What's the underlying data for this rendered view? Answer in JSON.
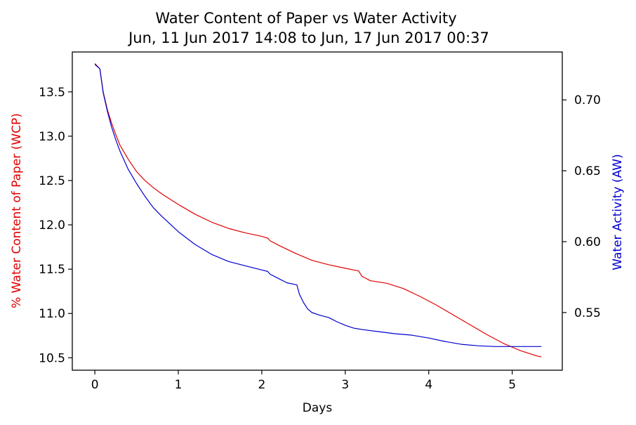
{
  "chart_data": {
    "type": "line",
    "title": "Water Content of Paper vs Water Activity",
    "subtitle": "Jun, 11 Jun 2017 14:08 to Jun, 17 Jun 2017 00:37",
    "xlabel": "Days",
    "ylabel_left": "% Water Content of Paper (WCP)",
    "ylabel_right": "Water Activity (AW)",
    "xlim": [
      -0.27,
      5.6
    ],
    "ylim_left": [
      10.36,
      13.95
    ],
    "ylim_right": [
      0.5093,
      0.7338
    ],
    "x_ticks": [
      0,
      1,
      2,
      3,
      4,
      5
    ],
    "y_left_ticks": [
      10.5,
      11.0,
      11.5,
      12.0,
      12.5,
      13.0,
      13.5
    ],
    "y_right_ticks": [
      0.55,
      0.6,
      0.65,
      0.7
    ],
    "grid": false,
    "colors": {
      "wcp": "#e00000",
      "aw": "#0000cc"
    },
    "series": [
      {
        "name": "% Water Content of Paper (WCP)",
        "axis": "left",
        "color": "#e00000",
        "x": [
          0,
          0.06,
          0.1,
          0.15,
          0.2,
          0.25,
          0.3,
          0.4,
          0.5,
          0.6,
          0.7,
          0.8,
          1.0,
          1.2,
          1.4,
          1.6,
          1.8,
          2.0,
          2.07,
          2.1,
          2.2,
          2.4,
          2.6,
          2.8,
          3.0,
          3.16,
          3.2,
          3.3,
          3.5,
          3.7,
          3.9,
          4.1,
          4.3,
          4.5,
          4.7,
          4.9,
          5.1,
          5.3,
          5.35
        ],
        "y": [
          13.82,
          13.76,
          13.5,
          13.3,
          13.15,
          13.02,
          12.9,
          12.74,
          12.6,
          12.5,
          12.42,
          12.35,
          12.23,
          12.12,
          12.03,
          11.96,
          11.91,
          11.87,
          11.85,
          11.82,
          11.77,
          11.68,
          11.6,
          11.55,
          11.51,
          11.48,
          11.42,
          11.37,
          11.34,
          11.28,
          11.19,
          11.09,
          10.98,
          10.87,
          10.76,
          10.66,
          10.58,
          10.52,
          10.51
        ]
      },
      {
        "name": "Water Activity (AW)",
        "axis": "right",
        "color": "#0000cc",
        "x": [
          0,
          0.06,
          0.1,
          0.15,
          0.2,
          0.25,
          0.3,
          0.4,
          0.5,
          0.6,
          0.7,
          0.8,
          1.0,
          1.2,
          1.4,
          1.6,
          1.8,
          2.0,
          2.07,
          2.1,
          2.2,
          2.3,
          2.42,
          2.45,
          2.5,
          2.55,
          2.6,
          2.7,
          2.8,
          2.9,
          3.0,
          3.1,
          3.2,
          3.4,
          3.6,
          3.8,
          4.0,
          4.2,
          4.4,
          4.6,
          4.8,
          5.0,
          5.2,
          5.35
        ],
        "y": [
          0.725,
          0.722,
          0.705,
          0.692,
          0.681,
          0.672,
          0.664,
          0.651,
          0.641,
          0.632,
          0.624,
          0.618,
          0.607,
          0.598,
          0.591,
          0.586,
          0.583,
          0.58,
          0.579,
          0.577,
          0.574,
          0.571,
          0.5695,
          0.563,
          0.557,
          0.5525,
          0.55,
          0.548,
          0.5465,
          0.5435,
          0.541,
          0.539,
          0.538,
          0.5365,
          0.535,
          0.534,
          0.532,
          0.5295,
          0.5275,
          0.5265,
          0.526,
          0.526,
          0.526,
          0.526
        ]
      }
    ]
  }
}
